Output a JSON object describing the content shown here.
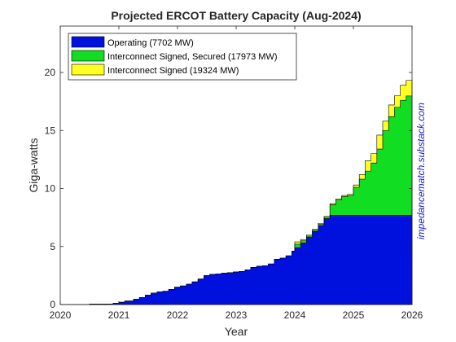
{
  "chart_data": {
    "type": "area",
    "title": "Projected ERCOT Battery Capacity (Aug-2024)",
    "xlabel": "Year",
    "ylabel": "Giga-watts",
    "xlim": [
      2020,
      2026
    ],
    "ylim": [
      0,
      24
    ],
    "xticks": [
      "2020",
      "2021",
      "2022",
      "2023",
      "2024",
      "2025",
      "2026"
    ],
    "yticks": [
      "0",
      "5",
      "10",
      "15",
      "20"
    ],
    "legend_position": "top-left",
    "watermark": "impedancematch.substack.com",
    "x": [
      2020.0,
      2020.5,
      2020.9,
      2021.0,
      2021.1,
      2021.25,
      2021.35,
      2021.45,
      2021.55,
      2021.65,
      2021.75,
      2021.85,
      2021.95,
      2022.05,
      2022.15,
      2022.25,
      2022.35,
      2022.45,
      2022.55,
      2022.65,
      2022.75,
      2022.85,
      2022.95,
      2023.05,
      2023.15,
      2023.25,
      2023.35,
      2023.45,
      2023.55,
      2023.65,
      2023.75,
      2023.85,
      2023.95,
      2024.0,
      2024.1,
      2024.2,
      2024.3,
      2024.4,
      2024.5,
      2024.6,
      2024.7,
      2024.8,
      2024.9,
      2025.0,
      2025.1,
      2025.2,
      2025.3,
      2025.4,
      2025.5,
      2025.6,
      2025.7,
      2025.8,
      2025.9,
      2026.0
    ],
    "series": [
      {
        "name": "Operating (7702 MW)",
        "color": "#0011dd",
        "values": [
          0.0,
          0.05,
          0.1,
          0.2,
          0.3,
          0.45,
          0.6,
          0.8,
          1.0,
          1.1,
          1.15,
          1.3,
          1.5,
          1.6,
          1.75,
          1.95,
          2.2,
          2.5,
          2.6,
          2.65,
          2.7,
          2.75,
          2.8,
          2.85,
          3.0,
          3.2,
          3.3,
          3.35,
          3.5,
          3.9,
          4.0,
          4.2,
          4.6,
          4.9,
          5.3,
          5.8,
          6.3,
          6.8,
          7.4,
          7.702,
          7.702,
          7.702,
          7.702,
          7.702,
          7.702,
          7.702,
          7.702,
          7.702,
          7.702,
          7.702,
          7.702,
          7.702,
          7.702,
          7.702
        ]
      },
      {
        "name": "Interconnect Signed, Secured (17973 MW)",
        "color": "#11dd22",
        "values": [
          0.0,
          0.05,
          0.1,
          0.2,
          0.3,
          0.45,
          0.6,
          0.8,
          1.0,
          1.1,
          1.15,
          1.3,
          1.5,
          1.6,
          1.75,
          1.95,
          2.2,
          2.5,
          2.6,
          2.65,
          2.7,
          2.75,
          2.8,
          2.85,
          3.0,
          3.2,
          3.3,
          3.35,
          3.5,
          3.9,
          4.0,
          4.2,
          4.6,
          5.2,
          5.5,
          5.9,
          6.4,
          6.9,
          7.5,
          8.6,
          9.0,
          9.3,
          9.4,
          10.1,
          10.8,
          11.5,
          12.2,
          13.4,
          15.0,
          16.2,
          17.0,
          17.6,
          17.973,
          17.973
        ]
      },
      {
        "name": "Interconnect Signed (19324 MW)",
        "color": "#ffff22",
        "values": [
          0.0,
          0.05,
          0.1,
          0.2,
          0.3,
          0.45,
          0.6,
          0.8,
          1.0,
          1.1,
          1.15,
          1.3,
          1.5,
          1.6,
          1.75,
          1.95,
          2.2,
          2.5,
          2.6,
          2.65,
          2.7,
          2.75,
          2.8,
          2.85,
          3.0,
          3.2,
          3.3,
          3.35,
          3.5,
          3.9,
          4.0,
          4.2,
          4.6,
          5.4,
          5.6,
          6.0,
          6.5,
          7.0,
          7.6,
          8.7,
          9.1,
          9.4,
          9.5,
          10.3,
          11.2,
          12.4,
          13.0,
          14.6,
          15.8,
          17.2,
          18.0,
          18.9,
          19.324,
          19.324
        ]
      }
    ]
  }
}
